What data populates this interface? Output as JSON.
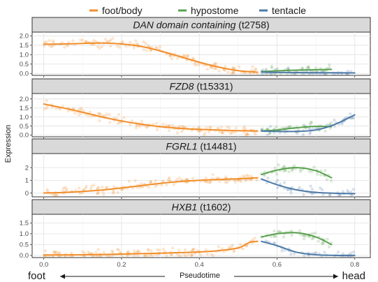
{
  "legend": [
    {
      "label": "foot/body",
      "color": "#F28E2B"
    },
    {
      "label": "hypostome",
      "color": "#59A14F"
    },
    {
      "label": "tentacle",
      "color": "#4E79A7"
    }
  ],
  "axis": {
    "ylabel": "Expression",
    "xlabel": "Pseudotime",
    "left_end": "foot",
    "right_end": "head"
  },
  "chart_data": {
    "type": "line",
    "xlabel": "Pseudotime",
    "ylabel": "Expression",
    "xlim": [
      -0.03,
      0.84
    ],
    "x_ticks": [
      "0.0",
      "0.2",
      "0.4",
      "0.6",
      "0.8"
    ],
    "x_tick_values": [
      0.0,
      0.2,
      0.4,
      0.6,
      0.8
    ],
    "grid": true,
    "legend_position": "top",
    "panels": [
      {
        "gene": "DAN domain containing",
        "id": "(t2758)",
        "ylim": [
          -0.1,
          2.2
        ],
        "y_ticks": [
          "0.0",
          "0.5",
          "1.0",
          "1.5",
          "2.0"
        ],
        "y_tick_values": [
          0,
          0.5,
          1.0,
          1.5,
          2.0
        ],
        "series": [
          {
            "name": "foot/body",
            "color": "#F28E2B",
            "x": [
              0.0,
              0.05,
              0.1,
              0.15,
              0.2,
              0.25,
              0.3,
              0.35,
              0.4,
              0.45,
              0.5,
              0.55
            ],
            "y": [
              1.56,
              1.57,
              1.6,
              1.62,
              1.57,
              1.44,
              1.2,
              0.9,
              0.6,
              0.34,
              0.15,
              0.07
            ]
          },
          {
            "name": "hypostome",
            "color": "#59A14F",
            "x": [
              0.56,
              0.6,
              0.65,
              0.7,
              0.74
            ],
            "y": [
              0.1,
              0.14,
              0.18,
              0.2,
              0.22
            ]
          },
          {
            "name": "tentacle",
            "color": "#4E79A7",
            "x": [
              0.56,
              0.6,
              0.65,
              0.7,
              0.75,
              0.8
            ],
            "y": [
              0.08,
              0.06,
              0.05,
              0.04,
              0.04,
              0.03
            ]
          }
        ]
      },
      {
        "gene": "FZD8",
        "id": "(t15331)",
        "ylim": [
          -0.1,
          2.3
        ],
        "y_ticks": [
          "0.0",
          "0.5",
          "1.0",
          "1.5",
          "2.0"
        ],
        "y_tick_values": [
          0,
          0.5,
          1.0,
          1.5,
          2.0
        ],
        "series": [
          {
            "name": "foot/body",
            "color": "#F28E2B",
            "x": [
              0.0,
              0.05,
              0.1,
              0.15,
              0.2,
              0.25,
              0.3,
              0.35,
              0.4,
              0.45,
              0.5,
              0.55
            ],
            "y": [
              1.72,
              1.5,
              1.26,
              1.0,
              0.78,
              0.6,
              0.46,
              0.37,
              0.31,
              0.27,
              0.24,
              0.22
            ]
          },
          {
            "name": "hypostome",
            "color": "#59A14F",
            "x": [
              0.56,
              0.6,
              0.65,
              0.7,
              0.74
            ],
            "y": [
              0.22,
              0.28,
              0.4,
              0.48,
              0.46
            ]
          },
          {
            "name": "tentacle",
            "color": "#4E79A7",
            "x": [
              0.56,
              0.6,
              0.65,
              0.7,
              0.75,
              0.8
            ],
            "y": [
              0.22,
              0.2,
              0.2,
              0.28,
              0.6,
              1.12
            ]
          }
        ]
      },
      {
        "gene": "FGRL1",
        "id": "(t14481)",
        "ylim": [
          -0.3,
          3.1
        ],
        "y_ticks": [
          "0",
          "1",
          "2"
        ],
        "y_tick_values": [
          0,
          1,
          2
        ],
        "series": [
          {
            "name": "foot/body",
            "color": "#F28E2B",
            "x": [
              0.0,
              0.05,
              0.1,
              0.15,
              0.2,
              0.25,
              0.3,
              0.35,
              0.4,
              0.45,
              0.5,
              0.55
            ],
            "y": [
              0.0,
              0.04,
              0.12,
              0.24,
              0.4,
              0.58,
              0.76,
              0.9,
              1.0,
              1.06,
              1.12,
              1.2
            ]
          },
          {
            "name": "hypostome",
            "color": "#59A14F",
            "x": [
              0.56,
              0.6,
              0.65,
              0.7,
              0.74
            ],
            "y": [
              1.45,
              1.8,
              2.0,
              1.75,
              1.2
            ]
          },
          {
            "name": "tentacle",
            "color": "#4E79A7",
            "x": [
              0.56,
              0.6,
              0.65,
              0.7,
              0.75,
              0.8
            ],
            "y": [
              1.1,
              0.65,
              0.25,
              0.05,
              -0.02,
              -0.05
            ]
          }
        ]
      },
      {
        "gene": "HXB1",
        "id": "(t1602)",
        "ylim": [
          -0.1,
          1.9
        ],
        "y_ticks": [
          "0.0",
          "0.5",
          "1.0",
          "1.5"
        ],
        "y_tick_values": [
          0,
          0.5,
          1.0,
          1.5
        ],
        "series": [
          {
            "name": "foot/body",
            "color": "#F28E2B",
            "x": [
              0.0,
              0.1,
              0.2,
              0.3,
              0.4,
              0.45,
              0.5,
              0.53,
              0.55
            ],
            "y": [
              0.02,
              0.03,
              0.06,
              0.1,
              0.16,
              0.22,
              0.35,
              0.6,
              0.65
            ]
          },
          {
            "name": "hypostome",
            "color": "#59A14F",
            "x": [
              0.56,
              0.6,
              0.65,
              0.7,
              0.74
            ],
            "y": [
              0.85,
              1.0,
              1.05,
              0.85,
              0.5
            ]
          },
          {
            "name": "tentacle",
            "color": "#4E79A7",
            "x": [
              0.56,
              0.6,
              0.65,
              0.7,
              0.75,
              0.8
            ],
            "y": [
              0.65,
              0.45,
              0.15,
              0.03,
              0.0,
              0.0
            ]
          }
        ]
      }
    ]
  }
}
